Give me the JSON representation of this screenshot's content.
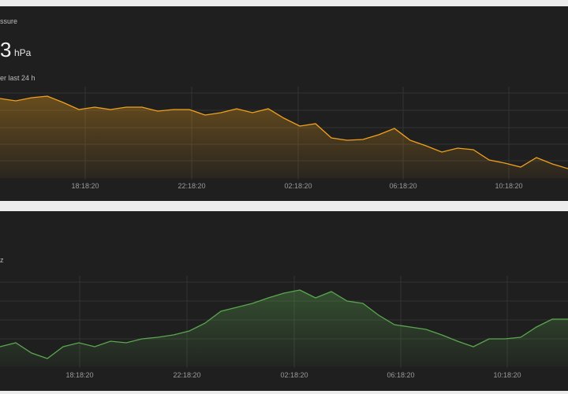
{
  "cards": [
    {
      "header": {
        "title": "ssure",
        "state": "3",
        "unit": "hPa",
        "subtitle": "er last 24 h"
      },
      "chart_data": {
        "type": "line",
        "color": "#f0a11c",
        "values": [
          101,
          98,
          102,
          104,
          96,
          87,
          90,
          87,
          90,
          90,
          85,
          87,
          87,
          80,
          83,
          88,
          83,
          88,
          76,
          66,
          69,
          51,
          48,
          49,
          55,
          63,
          48,
          41,
          33,
          38,
          36,
          23,
          19,
          14,
          26,
          18,
          12
        ],
        "ylim": [
          0,
          116
        ],
        "xticks": [
          {
            "value": 5.4,
            "label": "18:18:20"
          },
          {
            "value": 12.15,
            "label": "22:18:20"
          },
          {
            "value": 18.9,
            "label": "02:18:20"
          },
          {
            "value": 25.55,
            "label": "06:18:20"
          },
          {
            "value": 32.25,
            "label": "10:18:20"
          }
        ]
      }
    },
    {
      "header": {
        "title": "z"
      },
      "chart_data": {
        "type": "line",
        "color": "#5aa64f",
        "values": [
          25,
          30,
          17,
          10,
          25,
          30,
          25,
          32,
          30,
          35,
          37,
          40,
          45,
          55,
          70,
          75,
          80,
          87,
          93,
          97,
          87,
          95,
          83,
          80,
          65,
          53,
          50,
          47,
          40,
          32,
          25,
          35,
          35,
          37,
          50,
          60,
          60
        ],
        "ylim": [
          0,
          115
        ],
        "xticks": [
          {
            "value": 5.05,
            "label": "18:18:20"
          },
          {
            "value": 11.85,
            "label": "22:18:20"
          },
          {
            "value": 18.65,
            "label": "02:18:20"
          },
          {
            "value": 25.4,
            "label": "06:18:20"
          },
          {
            "value": 32.15,
            "label": "10:18:20"
          }
        ]
      }
    }
  ]
}
